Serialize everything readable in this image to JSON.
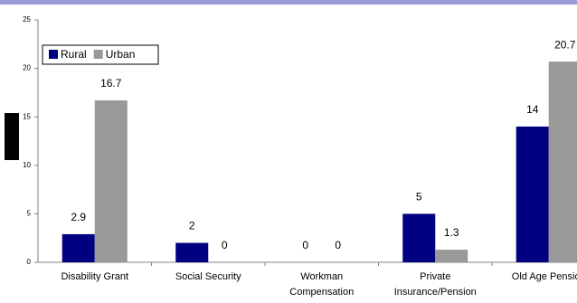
{
  "chart_data": {
    "type": "bar",
    "categories": [
      "Disability Grant",
      "Social Security",
      "Workman Compensation",
      "Private Insurance/Pension",
      "Old Age Pension"
    ],
    "series": [
      {
        "name": "Rural",
        "color": "#000080",
        "values": [
          2.9,
          2,
          0,
          5,
          14
        ]
      },
      {
        "name": "Urban",
        "color": "#999999",
        "values": [
          16.7,
          0,
          0,
          1.3,
          20.7
        ]
      }
    ],
    "ylim": [
      0,
      25
    ],
    "yticks": [
      0,
      5,
      10,
      15,
      20,
      25
    ],
    "grid": false
  }
}
